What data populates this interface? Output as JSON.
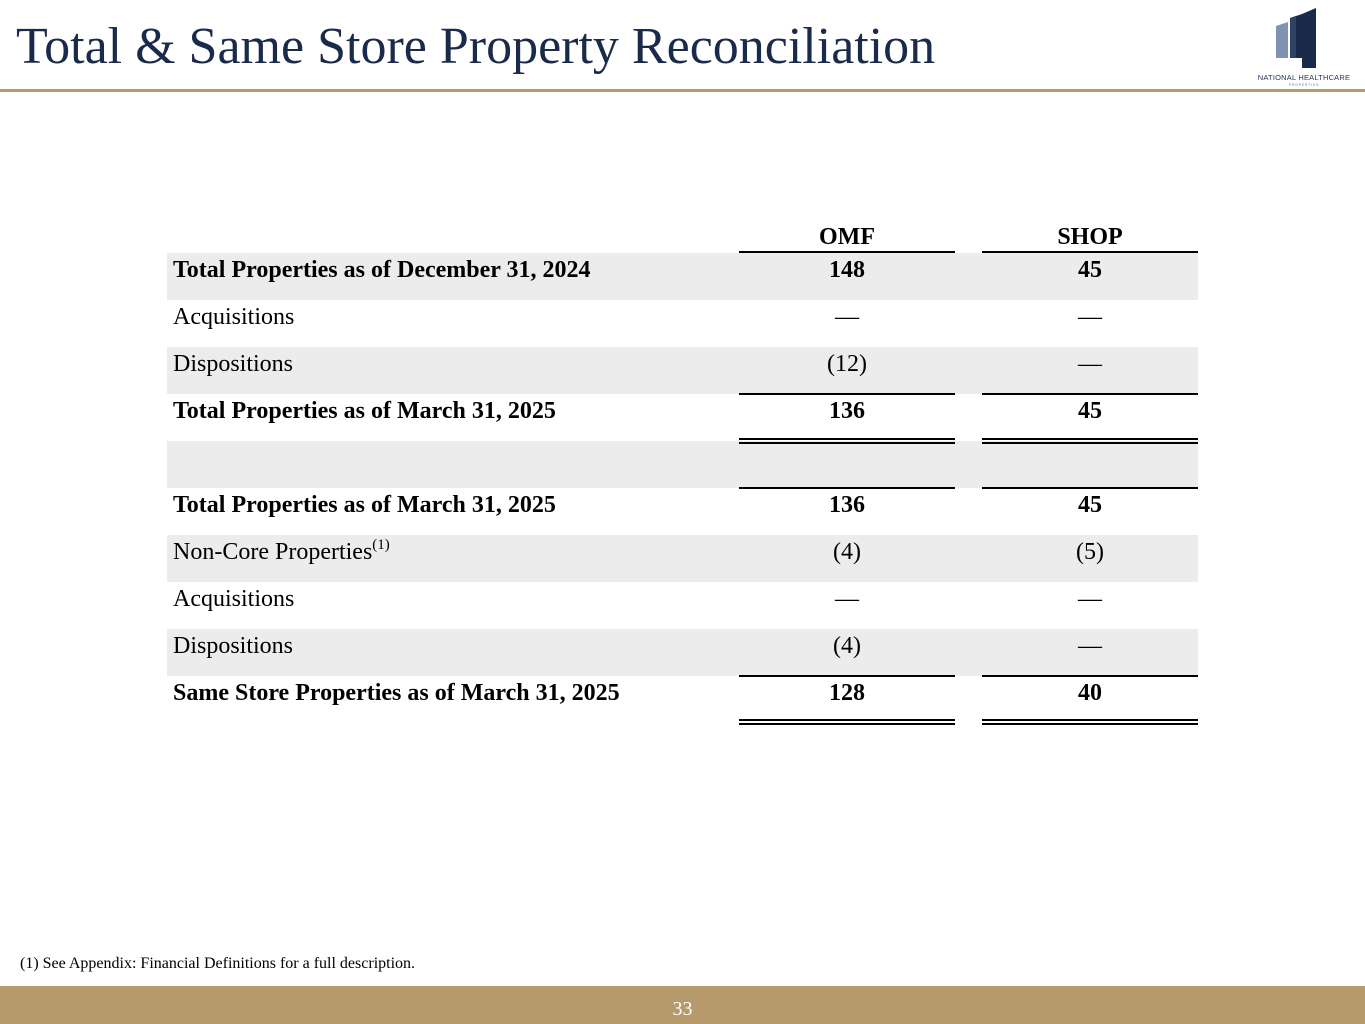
{
  "header": {
    "title": "Total & Same Store Property Reconciliation",
    "logo_text": "NATIONAL HEALTHCARE",
    "logo_subtext": "PROPERTIES"
  },
  "table": {
    "columns": [
      "OMF",
      "SHOP"
    ],
    "rows": [
      {
        "label": "Total Properties as of December 31, 2024",
        "omf": "148",
        "shop": "45"
      },
      {
        "label": "Acquisitions",
        "omf": "—",
        "shop": "—"
      },
      {
        "label": "Dispositions",
        "omf": "(12)",
        "shop": "—"
      },
      {
        "label": "Total Properties as of March 31, 2025",
        "omf": "136",
        "shop": "45"
      },
      {
        "label": "Total Properties as of March 31, 2025",
        "omf": "136",
        "shop": "45"
      },
      {
        "label": "Non-Core Properties",
        "sup": "(1)",
        "omf": "(4)",
        "shop": "(5)"
      },
      {
        "label": "Acquisitions",
        "omf": "—",
        "shop": "—"
      },
      {
        "label": "Dispositions",
        "omf": "(4)",
        "shop": "—"
      },
      {
        "label": "Same Store Properties as of March 31, 2025",
        "omf": "128",
        "shop": "40"
      }
    ]
  },
  "footnote": "(1) See Appendix: Financial Definitions for a full description.",
  "footer": {
    "page_number": "33"
  },
  "colors": {
    "navy": "#1a2a4a",
    "gold": "#b79a6b",
    "shade": "#ececec"
  }
}
